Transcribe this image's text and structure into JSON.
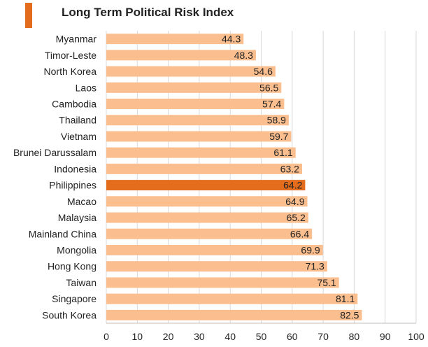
{
  "title": "Long Term Political Risk Index",
  "colors": {
    "accent": "#e36c1d",
    "bar": "#fbbf8f",
    "highlight": "#e36c1d",
    "grid": "#d9d9d9"
  },
  "chart_data": {
    "type": "bar",
    "orientation": "horizontal",
    "title": "Long Term Political Risk Index",
    "categories": [
      "Myanmar",
      "Timor-Leste",
      "North Korea",
      "Laos",
      "Cambodia",
      "Thailand",
      "Vietnam",
      "Brunei Darussalam",
      "Indonesia",
      "Philippines",
      "Macao",
      "Malaysia",
      "Mainland China",
      "Mongolia",
      "Hong Kong",
      "Taiwan",
      "Singapore",
      "South Korea"
    ],
    "values": [
      44.3,
      48.3,
      54.6,
      56.5,
      57.4,
      58.9,
      59.7,
      61.1,
      63.2,
      64.2,
      64.9,
      65.2,
      66.4,
      69.9,
      71.3,
      75.1,
      81.1,
      82.5
    ],
    "value_labels": [
      "44.3",
      "48.3",
      "54.6",
      "56.5",
      "57.4",
      "58.9",
      "59.7",
      "61.1",
      "63.2",
      "64.2",
      "64.9",
      "65.2",
      "66.4",
      "69.9",
      "71.3",
      "75.1",
      "81.1",
      "82.5"
    ],
    "highlighted_category": "Philippines",
    "xlim": [
      0,
      100
    ],
    "xticks": [
      "0",
      "10",
      "20",
      "30",
      "40",
      "50",
      "60",
      "70",
      "80",
      "90",
      "100"
    ],
    "xlabel": "",
    "ylabel": "",
    "grid": "vertical"
  }
}
